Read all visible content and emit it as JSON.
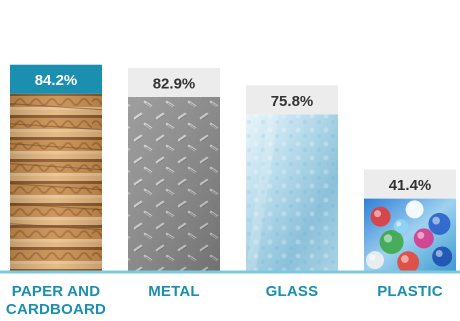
{
  "chart_data": {
    "type": "bar",
    "categories": [
      "PAPER AND CARDBOARD",
      "METAL",
      "GLASS",
      "PLASTIC"
    ],
    "values": [
      84.2,
      82.9,
      75.8,
      41.4
    ],
    "value_labels": [
      "84.2%",
      "82.9%",
      "75.8%",
      "41.4%"
    ],
    "bar_fills": [
      "cardboard-photo",
      "diamond-plate-metal-photo",
      "frosted-glass-photo",
      "plastic-bottles-photo"
    ],
    "highlight_index": 0,
    "title": "",
    "xlabel": "",
    "ylabel": "",
    "ylim": [
      0,
      100
    ],
    "grid": false,
    "legend": "none"
  },
  "colors": {
    "accent": "#1a8fb0",
    "label_box": "#ececec",
    "highlight_label_box": "#1a8fb0",
    "baseline": "#7ec8de",
    "category_text": "#1a8fb0"
  }
}
